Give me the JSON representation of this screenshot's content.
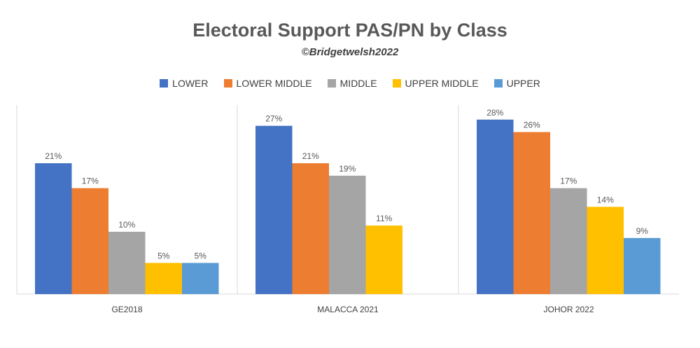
{
  "chart_data": {
    "type": "bar",
    "title": "Electoral Support PAS/PN by Class",
    "subtitle": "©Bridgetwelsh2022",
    "categories": [
      "GE2018",
      "MALACCA 2021",
      "JOHOR 2022"
    ],
    "series": [
      {
        "name": "LOWER",
        "color": "#4472C4",
        "values": [
          21,
          27,
          28
        ],
        "labels": [
          "21%",
          "27%",
          "28%"
        ]
      },
      {
        "name": "LOWER MIDDLE",
        "color": "#ED7D31",
        "values": [
          17,
          21,
          26
        ],
        "labels": [
          "17%",
          "21%",
          "26%"
        ]
      },
      {
        "name": "MIDDLE",
        "color": "#A5A5A5",
        "values": [
          10,
          19,
          17
        ],
        "labels": [
          "10%",
          "19%",
          "17%"
        ]
      },
      {
        "name": "UPPER MIDDLE",
        "color": "#FFC000",
        "values": [
          5,
          11,
          14
        ],
        "labels": [
          "5%",
          "11%",
          "14%"
        ]
      },
      {
        "name": "UPPER",
        "color": "#5B9BD5",
        "values": [
          5,
          null,
          9
        ],
        "labels": [
          "5%",
          null,
          "9%"
        ]
      }
    ],
    "ylim": [
      0,
      30
    ],
    "grid": false,
    "legend_position": "top"
  }
}
